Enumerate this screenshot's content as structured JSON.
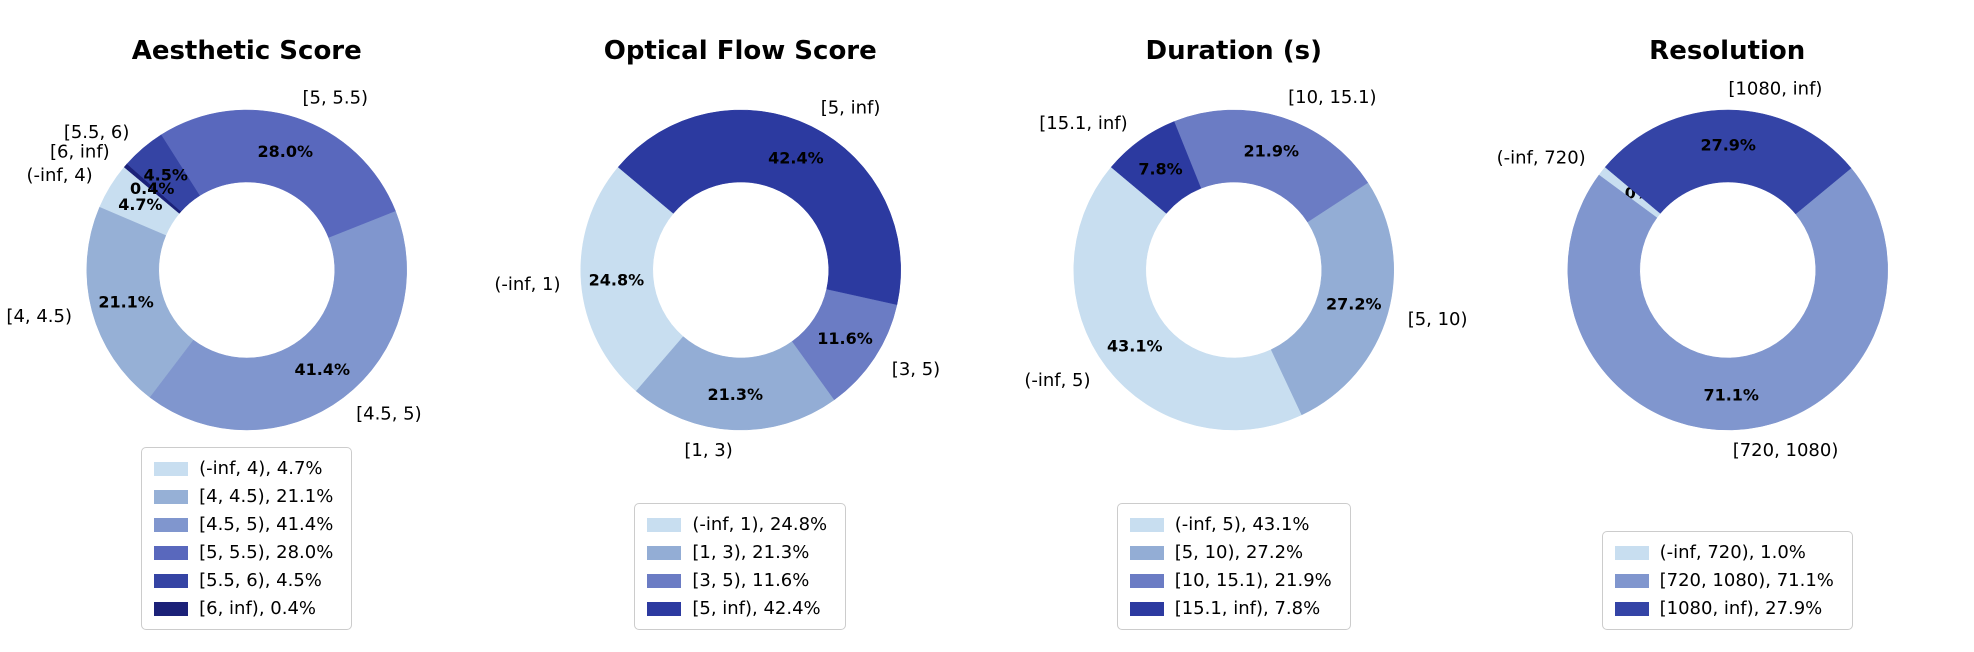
{
  "chart_data": [
    {
      "type": "pie",
      "variant": "donut",
      "title": "Aesthetic Score",
      "start_angle": 140,
      "direction": "counterclockwise",
      "inner_radius_ratio": 0.55,
      "legend_position": "lower center",
      "segments": [
        {
          "label": "(-inf, 4)",
          "value": 4.7,
          "pct_label": "4.7%",
          "legend_label": "(-inf, 4), 4.7%",
          "color": "#c8def0"
        },
        {
          "label": "[4, 4.5)",
          "value": 21.1,
          "pct_label": "21.1%",
          "legend_label": "[4, 4.5), 21.1%",
          "color": "#96b0d6"
        },
        {
          "label": "[4.5, 5)",
          "value": 41.4,
          "pct_label": "41.4%",
          "legend_label": "[4.5, 5), 41.4%",
          "color": "#8096ce"
        },
        {
          "label": "[5, 5.5)",
          "value": 28.0,
          "pct_label": "28.0%",
          "legend_label": "[5, 5.5), 28.0%",
          "color": "#5968bd"
        },
        {
          "label": "[5.5, 6)",
          "value": 4.5,
          "pct_label": "4.5%",
          "legend_label": "[5.5, 6), 4.5%",
          "color": "#3544a4"
        },
        {
          "label": "[6, inf)",
          "value": 0.4,
          "pct_label": "0.4%",
          "legend_label": "[6, inf), 0.4%",
          "color": "#1b2178"
        }
      ]
    },
    {
      "type": "pie",
      "variant": "donut",
      "title": "Optical Flow Score",
      "start_angle": 140,
      "direction": "counterclockwise",
      "inner_radius_ratio": 0.55,
      "legend_position": "lower center",
      "segments": [
        {
          "label": "(-inf, 1)",
          "value": 24.8,
          "pct_label": "24.8%",
          "legend_label": "(-inf, 1), 24.8%",
          "color": "#c8def0"
        },
        {
          "label": "[1, 3)",
          "value": 21.3,
          "pct_label": "21.3%",
          "legend_label": "[1, 3), 21.3%",
          "color": "#93add5"
        },
        {
          "label": "[3, 5)",
          "value": 11.6,
          "pct_label": "11.6%",
          "legend_label": "[3, 5), 11.6%",
          "color": "#6b7cc4"
        },
        {
          "label": "[5, inf)",
          "value": 42.4,
          "pct_label": "42.4%",
          "legend_label": "[5, inf), 42.4%",
          "color": "#2c3aa0"
        }
      ]
    },
    {
      "type": "pie",
      "variant": "donut",
      "title": "Duration (s)",
      "start_angle": 140,
      "direction": "counterclockwise",
      "inner_radius_ratio": 0.55,
      "legend_position": "lower center",
      "segments": [
        {
          "label": "(-inf, 5)",
          "value": 43.1,
          "pct_label": "43.1%",
          "legend_label": "(-inf, 5), 43.1%",
          "color": "#c8def0"
        },
        {
          "label": "[5, 10)",
          "value": 27.2,
          "pct_label": "27.2%",
          "legend_label": "[5, 10), 27.2%",
          "color": "#93add5"
        },
        {
          "label": "[10, 15.1)",
          "value": 21.9,
          "pct_label": "21.9%",
          "legend_label": "[10, 15.1), 21.9%",
          "color": "#6b7cc4"
        },
        {
          "label": "[15.1, inf)",
          "value": 7.8,
          "pct_label": "7.8%",
          "legend_label": "[15.1, inf), 7.8%",
          "color": "#2c3aa0"
        }
      ]
    },
    {
      "type": "pie",
      "variant": "donut",
      "title": "Resolution",
      "start_angle": 140,
      "direction": "counterclockwise",
      "inner_radius_ratio": 0.55,
      "legend_position": "lower center",
      "segments": [
        {
          "label": "(-inf, 720)",
          "value": 1.0,
          "pct_label": "1.0%",
          "legend_label": "(-inf, 720), 1.0%",
          "color": "#c8def0"
        },
        {
          "label": "[720, 1080)",
          "value": 71.1,
          "pct_label": "71.1%",
          "legend_label": "[720, 1080), 71.1%",
          "color": "#8096ce"
        },
        {
          "label": "[1080, inf)",
          "value": 27.9,
          "pct_label": "27.9%",
          "legend_label": "[1080, inf), 27.9%",
          "color": "#3444a6"
        }
      ]
    }
  ]
}
